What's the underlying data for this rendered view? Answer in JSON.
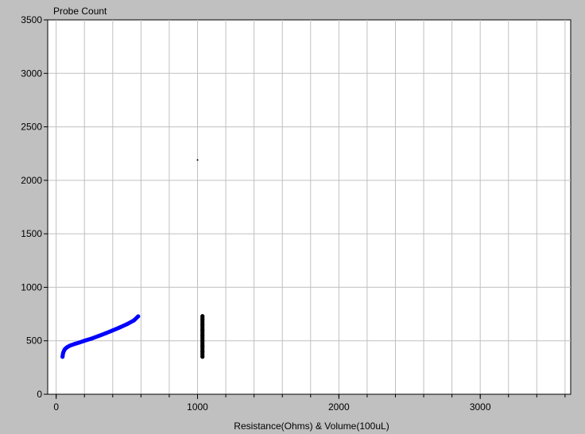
{
  "chart_data": {
    "type": "scatter",
    "title": "",
    "ylabel": "Probe Count",
    "xlabel": "Resistance(Ohms) & Volume(100uL)",
    "xlim": [
      -60,
      3640
    ],
    "ylim": [
      0,
      3500
    ],
    "xticks": [
      0,
      1000,
      2000,
      3000
    ],
    "xtick_labels": [
      "0",
      "1000",
      "2000",
      "3000"
    ],
    "x_grid_spacing": 200,
    "yticks": [
      0,
      500,
      1000,
      1500,
      2000,
      2500,
      3000,
      3500
    ],
    "ytick_labels": [
      "0",
      "500",
      "1000",
      "1500",
      "2000",
      "2500",
      "3000",
      "3500"
    ],
    "grid": true,
    "legend": "none",
    "series": [
      {
        "color": "#0000ff",
        "points": [
          [
            45,
            350
          ],
          [
            47,
            370
          ],
          [
            50,
            390
          ],
          [
            55,
            405
          ],
          [
            60,
            418
          ],
          [
            70,
            432
          ],
          [
            80,
            442
          ],
          [
            100,
            456
          ],
          [
            130,
            470
          ],
          [
            160,
            482
          ],
          [
            200,
            500
          ],
          [
            250,
            520
          ],
          [
            300,
            545
          ],
          [
            350,
            570
          ],
          [
            400,
            597
          ],
          [
            450,
            625
          ],
          [
            500,
            655
          ],
          [
            550,
            690
          ],
          [
            580,
            728
          ]
        ]
      },
      {
        "color": "#000000",
        "points": [
          [
            1035,
            350
          ],
          [
            1035,
            400
          ],
          [
            1035,
            450
          ],
          [
            1035,
            500
          ],
          [
            1035,
            550
          ],
          [
            1035,
            600
          ],
          [
            1035,
            650
          ],
          [
            1035,
            700
          ],
          [
            1035,
            730
          ]
        ]
      },
      {
        "color": "#000000",
        "points": [
          [
            1000,
            2190
          ]
        ]
      }
    ]
  }
}
